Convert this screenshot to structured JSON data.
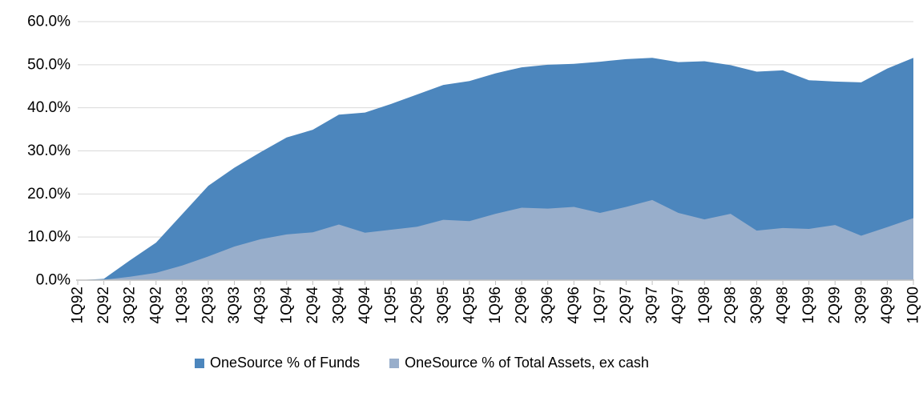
{
  "chart_data": {
    "type": "area",
    "title": "",
    "xlabel": "",
    "ylabel": "",
    "categories": [
      "1Q92",
      "2Q92",
      "3Q92",
      "4Q92",
      "1Q93",
      "2Q93",
      "3Q93",
      "4Q93",
      "1Q94",
      "2Q94",
      "3Q94",
      "4Q94",
      "1Q95",
      "2Q95",
      "3Q95",
      "4Q95",
      "1Q96",
      "2Q96",
      "3Q96",
      "4Q96",
      "1Q97",
      "2Q97",
      "3Q97",
      "4Q97",
      "1Q98",
      "2Q98",
      "3Q98",
      "4Q98",
      "1Q99",
      "2Q99",
      "3Q99",
      "4Q99",
      "1Q00"
    ],
    "series": [
      {
        "name": "OneSource % of Funds",
        "color": "#4C86BD",
        "values": [
          0,
          0.3,
          4.6,
          8.7,
          15.3,
          21.9,
          26.1,
          29.7,
          33.1,
          34.9,
          38.4,
          38.9,
          40.9,
          43.1,
          45.3,
          46.2,
          48.0,
          49.4,
          50.0,
          50.2,
          50.7,
          51.3,
          51.6,
          50.6,
          50.8,
          49.9,
          48.4,
          48.7,
          46.4,
          46.1,
          45.9,
          49.1,
          51.6
        ]
      },
      {
        "name": "OneSource % of Total Assets, ex cash",
        "color": "#98AECB",
        "values": [
          0,
          0.1,
          0.8,
          1.7,
          3.4,
          5.5,
          7.8,
          9.5,
          10.6,
          11.1,
          12.9,
          11.0,
          11.7,
          12.4,
          14.0,
          13.7,
          15.4,
          16.8,
          16.6,
          17.0,
          15.6,
          17.0,
          18.6,
          15.6,
          14.1,
          15.4,
          11.5,
          12.1,
          11.9,
          12.8,
          10.3,
          12.3,
          14.4
        ]
      }
    ],
    "y_axis": {
      "tick_labels": [
        "0.0%",
        "10.0%",
        "20.0%",
        "30.0%",
        "40.0%",
        "50.0%",
        "60.0%"
      ],
      "tick_values": [
        0,
        10,
        20,
        30,
        40,
        50,
        60
      ],
      "min": 0,
      "max": 60
    },
    "style": {
      "gridline_color": "#D9D9D9",
      "axis_color": "#BFBFBF",
      "text_color": "#000000",
      "grid": true,
      "legend_position": "bottom"
    }
  }
}
